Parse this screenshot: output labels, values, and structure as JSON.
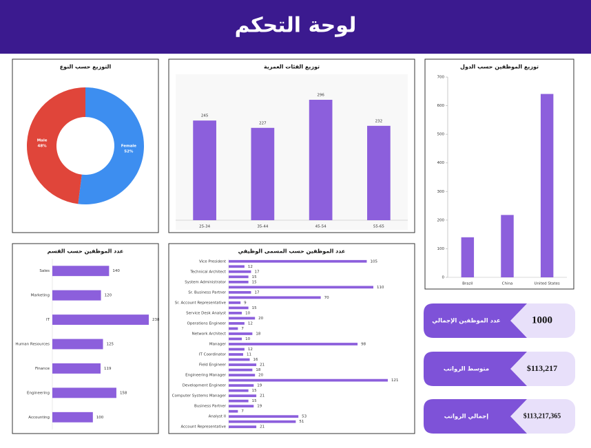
{
  "header": {
    "title": "لوحة التحكم"
  },
  "chart_data": [
    {
      "type": "pie",
      "title": "التوزيع حسب النوع",
      "categories": [
        "Female",
        "Male"
      ],
      "values": [
        52,
        48
      ],
      "value_labels": [
        "52%",
        "48%"
      ],
      "colors": [
        "#3d8ef0",
        "#e0453a"
      ]
    },
    {
      "type": "bar",
      "title": "توزيع الفئات العمرية",
      "categories": [
        "25-34",
        "35-44",
        "45-54",
        "55-65"
      ],
      "values": [
        245,
        227,
        296,
        232
      ],
      "color": "#8c5fdc",
      "data_labels": true
    },
    {
      "type": "bar",
      "title": "توزيع الموظفين حسب الدول",
      "categories": [
        "Brazil",
        "China",
        "United States"
      ],
      "values": [
        140,
        218,
        641
      ],
      "color": "#8c5fdc",
      "ylim": [
        0,
        700
      ],
      "yticks": [
        0,
        100,
        200,
        300,
        400,
        500,
        600,
        700
      ],
      "data_labels": false
    },
    {
      "type": "hbar",
      "title": "عدد الموظفين حسب القسم",
      "categories": [
        "Sales",
        "Marketing",
        "IT",
        "Human Resources",
        "Finance",
        "Engineering",
        "Accounting"
      ],
      "values": [
        140,
        120,
        238,
        125,
        119,
        158,
        100
      ],
      "color": "#8c5fdc",
      "data_labels": true
    },
    {
      "type": "hbar",
      "title": "عدد الموظفين حسب المسمى الوظيفي",
      "categories": [
        "Vice President",
        null,
        "Technical Architect",
        null,
        "System Administrator",
        null,
        "Sr. Business Partner",
        null,
        "Sr. Account Representative",
        null,
        "Service Desk Analyst",
        null,
        "Operations Engineer",
        null,
        "Network Architect",
        null,
        "Manager",
        null,
        "IT Coordinator",
        null,
        "Field Engineer",
        null,
        "Engineering Manager",
        null,
        "Development Engineer",
        null,
        "Computer Systems Manager",
        null,
        "Business Partner",
        null,
        "Analyst II",
        null,
        "Account Representative"
      ],
      "values": [
        105,
        12,
        17,
        15,
        15,
        110,
        17,
        70,
        9,
        15,
        10,
        20,
        12,
        7,
        18,
        10,
        98,
        12,
        11,
        16,
        21,
        18,
        20,
        121,
        19,
        15,
        21,
        15,
        19,
        7,
        53,
        51,
        21
      ],
      "color": "#8c5fdc",
      "data_labels": true
    }
  ],
  "kpis": [
    {
      "label": "عدد الموظفين الإجمالي",
      "value": "1000"
    },
    {
      "label": "متوسط الرواتب",
      "value": "$113,217"
    },
    {
      "label": "إجمالي الرواتب",
      "value": "$113,217,365"
    }
  ]
}
